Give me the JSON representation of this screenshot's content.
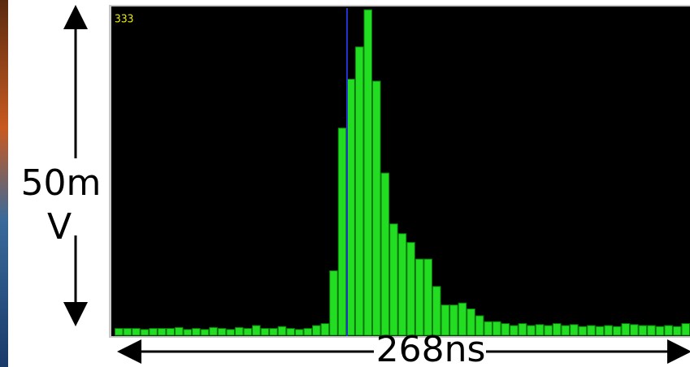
{
  "chart_data": {
    "type": "bar",
    "counter": "333",
    "y_span_label": [
      "50m",
      "V"
    ],
    "x_span_label": "268ns",
    "color": "#22dd22",
    "values": [
      7,
      7,
      7,
      6,
      7,
      7,
      7,
      8,
      6,
      7,
      6,
      8,
      7,
      6,
      8,
      7,
      10,
      7,
      7,
      9,
      7,
      6,
      7,
      10,
      12,
      66,
      212,
      262,
      295,
      333,
      260,
      166,
      114,
      104,
      95,
      78,
      78,
      50,
      31,
      31,
      33,
      27,
      20,
      14,
      14,
      12,
      10,
      12,
      10,
      11,
      10,
      12,
      10,
      11,
      9,
      10,
      9,
      10,
      9,
      12,
      11,
      10,
      10,
      9,
      10,
      9,
      12
    ]
  }
}
